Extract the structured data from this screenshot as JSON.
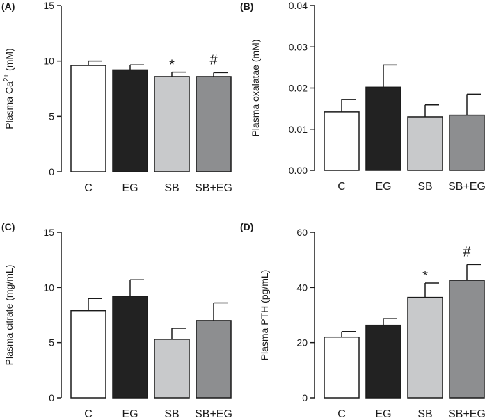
{
  "chart_data": [
    {
      "type": "bar",
      "panel": "(A)",
      "ylabel": {
        "main": "Plasma Ca",
        "sup": "2+",
        "tail": " (mM)"
      },
      "categories": [
        "C",
        "EG",
        "SB",
        "SB+EG"
      ],
      "values": [
        9.6,
        9.2,
        8.6,
        8.6
      ],
      "errors": [
        0.4,
        0.45,
        0.4,
        0.35
      ],
      "ylim": [
        0,
        15
      ],
      "yticks": [
        0,
        5,
        10,
        15
      ],
      "tick_labels": [
        "0",
        "5",
        "10",
        "15"
      ],
      "annotations": [
        "",
        "",
        "*",
        "#"
      ]
    },
    {
      "type": "bar",
      "panel": "(B)",
      "ylabel": {
        "main": "Plasma oxalatae (mM)",
        "sup": "",
        "tail": ""
      },
      "categories": [
        "C",
        "EG",
        "SB",
        "SB+EG"
      ],
      "values": [
        0.0142,
        0.0202,
        0.013,
        0.0134
      ],
      "errors": [
        0.003,
        0.0054,
        0.0029,
        0.0051
      ],
      "ylim": [
        0,
        0.04
      ],
      "yticks": [
        0,
        0.01,
        0.02,
        0.03,
        0.04
      ],
      "tick_labels": [
        "0.00",
        "0.01",
        "0.02",
        "0.03",
        "0.04"
      ],
      "annotations": [
        "",
        "",
        "",
        ""
      ]
    },
    {
      "type": "bar",
      "panel": "(C)",
      "ylabel": {
        "main": "Plasma citrate (mg/mL)",
        "sup": "",
        "tail": ""
      },
      "categories": [
        "C",
        "EG",
        "SB",
        "SB+EG"
      ],
      "values": [
        7.9,
        9.2,
        5.3,
        7.0
      ],
      "errors": [
        1.1,
        1.5,
        1.0,
        1.6
      ],
      "ylim": [
        0,
        15
      ],
      "yticks": [
        0,
        5,
        10,
        15
      ],
      "tick_labels": [
        "0",
        "5",
        "10",
        "15"
      ],
      "annotations": [
        "",
        "",
        "",
        ""
      ]
    },
    {
      "type": "bar",
      "panel": "(D)",
      "ylabel": {
        "main": "Plasma PTH (pg/mL)",
        "sup": "",
        "tail": ""
      },
      "categories": [
        "C",
        "EG",
        "SB",
        "SB+EG"
      ],
      "values": [
        22,
        26.3,
        36.4,
        42.6
      ],
      "errors": [
        2.0,
        2.4,
        5.2,
        5.7
      ],
      "ylim": [
        0,
        60
      ],
      "yticks": [
        0,
        20,
        40,
        60
      ],
      "tick_labels": [
        "0",
        "20",
        "40",
        "60"
      ],
      "annotations": [
        "",
        "",
        "*",
        "#"
      ]
    }
  ],
  "colors": {
    "bars": [
      "#ffffff",
      "#222222",
      "#c8c9cb",
      "#8d8e90"
    ],
    "stroke": "#1a1a1a"
  }
}
